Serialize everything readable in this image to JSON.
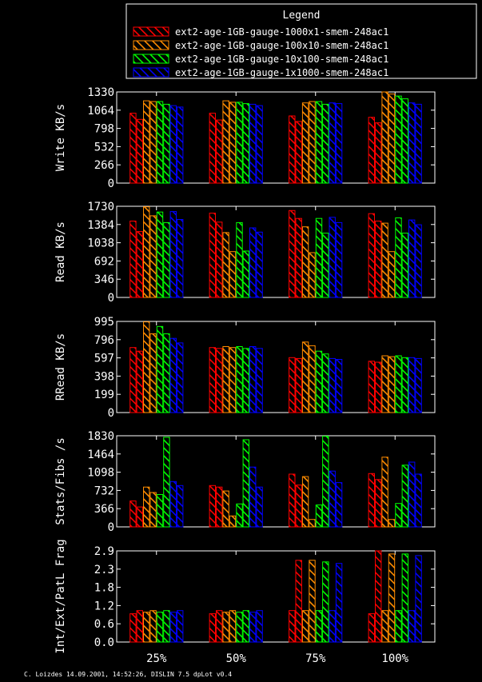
{
  "legend": {
    "title": "Legend",
    "entries": [
      {
        "name": "ext2-age-1GB-gauge-1000x1-smem-248ac1",
        "color": "#ff0000"
      },
      {
        "name": "ext2-age-1GB-gauge-100x10-smem-248ac1",
        "color": "#ff8c00"
      },
      {
        "name": "ext2-age-1GB-gauge-10x100-smem-248ac1",
        "color": "#00ff00"
      },
      {
        "name": "ext2-age-1GB-gauge-1x1000-smem-248ac1",
        "color": "#0000ff"
      }
    ]
  },
  "footer": "C. Loizdes 14.09.2001, 14:52:26, DISLIN 7.5 dpLot v0.4",
  "chart_data": [
    {
      "type": "bar",
      "ylabel": "Write KB/s",
      "ylim": [
        0,
        1330
      ],
      "yticks": [
        "0",
        "266",
        "532",
        "798",
        "1064",
        "1330"
      ],
      "categories": [
        "25%",
        "50%",
        "75%",
        "100%"
      ],
      "series": [
        {
          "name": "ext2-age-1GB-gauge-1000x1-smem-248ac1",
          "values": [
            [
              1020,
              930
            ],
            [
              1020,
              920
            ],
            [
              980,
              900
            ],
            [
              960,
              880
            ]
          ]
        },
        {
          "name": "ext2-age-1GB-gauge-100x10-smem-248ac1",
          "values": [
            [
              1200,
              1190
            ],
            [
              1200,
              1180
            ],
            [
              1170,
              1190
            ],
            [
              1330,
              1300
            ]
          ]
        },
        {
          "name": "ext2-age-1GB-gauge-10x100-smem-248ac1",
          "values": [
            [
              1190,
              1150
            ],
            [
              1180,
              1160
            ],
            [
              1190,
              1150
            ],
            [
              1270,
              1230
            ]
          ]
        },
        {
          "name": "ext2-age-1GB-gauge-1x1000-smem-248ac1",
          "values": [
            [
              1130,
              1110
            ],
            [
              1150,
              1130
            ],
            [
              1170,
              1160
            ],
            [
              1170,
              1150
            ]
          ]
        }
      ]
    },
    {
      "type": "bar",
      "ylabel": "Read KB/s",
      "ylim": [
        0,
        1730
      ],
      "yticks": [
        "0",
        "346",
        "692",
        "1038",
        "1384",
        "1730"
      ],
      "categories": [
        "25%",
        "50%",
        "75%",
        "100%"
      ],
      "series": [
        {
          "name": "ext2-age-1GB-gauge-1000x1-smem-248ac1",
          "values": [
            [
              1450,
              1250
            ],
            [
              1600,
              1430
            ],
            [
              1650,
              1500
            ],
            [
              1590,
              1450
            ]
          ]
        },
        {
          "name": "ext2-age-1GB-gauge-100x10-smem-248ac1",
          "values": [
            [
              1720,
              1550
            ],
            [
              1230,
              870
            ],
            [
              1340,
              850
            ],
            [
              1410,
              870
            ]
          ]
        },
        {
          "name": "ext2-age-1GB-gauge-10x100-smem-248ac1",
          "values": [
            [
              1620,
              1420
            ],
            [
              1420,
              880
            ],
            [
              1500,
              1220
            ],
            [
              1510,
              1220
            ]
          ]
        },
        {
          "name": "ext2-age-1GB-gauge-1x1000-smem-248ac1",
          "values": [
            [
              1630,
              1480
            ],
            [
              1320,
              1240
            ],
            [
              1520,
              1420
            ],
            [
              1470,
              1380
            ]
          ]
        }
      ]
    },
    {
      "type": "bar",
      "ylabel": "RRead KB/s",
      "ylim": [
        0,
        995
      ],
      "yticks": [
        "0",
        "199",
        "398",
        "597",
        "796",
        "995"
      ],
      "categories": [
        "25%",
        "50%",
        "75%",
        "100%"
      ],
      "series": [
        {
          "name": "ext2-age-1GB-gauge-1000x1-smem-248ac1",
          "values": [
            [
              710,
              670
            ],
            [
              710,
              700
            ],
            [
              600,
              590
            ],
            [
              560,
              550
            ]
          ]
        },
        {
          "name": "ext2-age-1GB-gauge-100x10-smem-248ac1",
          "values": [
            [
              990,
              860
            ],
            [
              720,
              710
            ],
            [
              770,
              730
            ],
            [
              620,
              610
            ]
          ]
        },
        {
          "name": "ext2-age-1GB-gauge-10x100-smem-248ac1",
          "values": [
            [
              940,
              860
            ],
            [
              720,
              700
            ],
            [
              670,
              640
            ],
            [
              620,
              600
            ]
          ]
        },
        {
          "name": "ext2-age-1GB-gauge-1x1000-smem-248ac1",
          "values": [
            [
              810,
              760
            ],
            [
              720,
              700
            ],
            [
              590,
              580
            ],
            [
              600,
              590
            ]
          ]
        }
      ]
    },
    {
      "type": "bar",
      "ylabel": "Stats/Fibs /s",
      "ylim": [
        0,
        1830
      ],
      "yticks": [
        "0",
        "366",
        "732",
        "1098",
        "1464",
        "1830"
      ],
      "categories": [
        "25%",
        "50%",
        "75%",
        "100%"
      ],
      "series": [
        {
          "name": "ext2-age-1GB-gauge-1000x1-smem-248ac1",
          "values": [
            [
              520,
              400
            ],
            [
              830,
              800
            ],
            [
              1060,
              840
            ],
            [
              1070,
              950
            ]
          ]
        },
        {
          "name": "ext2-age-1GB-gauge-100x10-smem-248ac1",
          "values": [
            [
              800,
              690
            ],
            [
              720,
              220
            ],
            [
              1010,
              150
            ],
            [
              1400,
              150
            ]
          ]
        },
        {
          "name": "ext2-age-1GB-gauge-10x100-smem-248ac1",
          "values": [
            [
              650,
              1800
            ],
            [
              460,
              1750
            ],
            [
              440,
              1820
            ],
            [
              470,
              1240
            ]
          ]
        },
        {
          "name": "ext2-age-1GB-gauge-1x1000-smem-248ac1",
          "values": [
            [
              910,
              830
            ],
            [
              1200,
              800
            ],
            [
              1120,
              890
            ],
            [
              1300,
              1060
            ]
          ]
        }
      ]
    },
    {
      "type": "bar",
      "ylabel": "Int/Ext/PatL Frag",
      "ylim": [
        0,
        2.9
      ],
      "yticks": [
        "0.0",
        "0.6",
        "1.2",
        "1.8",
        "2.3",
        "2.9"
      ],
      "categories": [
        "25%",
        "50%",
        "75%",
        "100%"
      ],
      "series": [
        {
          "name": "ext2-age-1GB-gauge-1000x1-smem-248ac1",
          "values": [
            [
              0.9,
              1.0
            ],
            [
              0.9,
              1.0
            ],
            [
              1.0,
              2.6
            ],
            [
              0.9,
              2.9
            ]
          ]
        },
        {
          "name": "ext2-age-1GB-gauge-100x10-smem-248ac1",
          "values": [
            [
              0.95,
              1.0
            ],
            [
              0.95,
              1.0
            ],
            [
              1.0,
              2.6
            ],
            [
              1.0,
              2.8
            ]
          ]
        },
        {
          "name": "ext2-age-1GB-gauge-10x100-smem-248ac1",
          "values": [
            [
              0.95,
              1.0
            ],
            [
              0.95,
              1.0
            ],
            [
              1.0,
              2.55
            ],
            [
              1.0,
              2.8
            ]
          ]
        },
        {
          "name": "ext2-age-1GB-gauge-1x1000-smem-248ac1",
          "values": [
            [
              0.95,
              1.0
            ],
            [
              0.95,
              1.0
            ],
            [
              1.0,
              2.5
            ],
            [
              1.0,
              2.75
            ]
          ]
        }
      ]
    }
  ]
}
